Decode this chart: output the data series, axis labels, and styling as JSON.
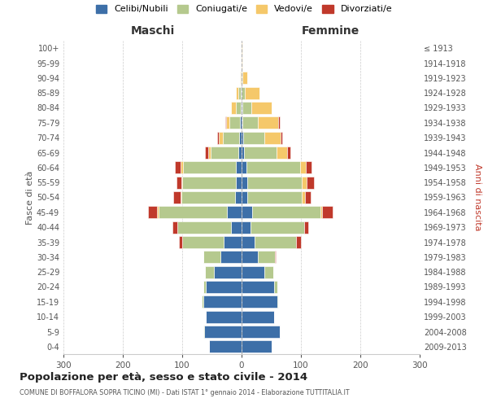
{
  "age_groups": [
    "0-4",
    "5-9",
    "10-14",
    "15-19",
    "20-24",
    "25-29",
    "30-34",
    "35-39",
    "40-44",
    "45-49",
    "50-54",
    "55-59",
    "60-64",
    "65-69",
    "70-74",
    "75-79",
    "80-84",
    "85-89",
    "90-94",
    "95-99",
    "100+"
  ],
  "birth_years": [
    "2009-2013",
    "2004-2008",
    "1999-2003",
    "1994-1998",
    "1989-1993",
    "1984-1988",
    "1979-1983",
    "1974-1978",
    "1969-1973",
    "1964-1968",
    "1959-1963",
    "1954-1958",
    "1949-1953",
    "1944-1948",
    "1939-1943",
    "1934-1938",
    "1929-1933",
    "1924-1928",
    "1919-1923",
    "1914-1918",
    "≤ 1913"
  ],
  "colors": {
    "celibi": "#3d6fa8",
    "coniugati": "#b5c98e",
    "vedovi": "#f5c86a",
    "divorziati": "#c0392b"
  },
  "maschi": {
    "celibi": [
      55,
      63,
      60,
      65,
      60,
      47,
      35,
      30,
      18,
      25,
      11,
      10,
      9,
      6,
      4,
      3,
      2,
      1,
      0,
      0,
      0
    ],
    "coniugati": [
      0,
      2,
      0,
      2,
      5,
      15,
      30,
      70,
      90,
      115,
      90,
      90,
      90,
      46,
      27,
      18,
      8,
      5,
      2,
      0,
      0
    ],
    "vedovi": [
      0,
      0,
      0,
      0,
      0,
      0,
      0,
      0,
      0,
      2,
      2,
      2,
      4,
      4,
      8,
      5,
      8,
      4,
      1,
      0,
      0
    ],
    "divorziati": [
      0,
      0,
      0,
      0,
      0,
      0,
      0,
      5,
      8,
      15,
      12,
      8,
      10,
      5,
      2,
      2,
      0,
      0,
      0,
      0,
      0
    ]
  },
  "femmine": {
    "celibi": [
      50,
      65,
      55,
      60,
      55,
      38,
      28,
      22,
      15,
      18,
      10,
      10,
      8,
      4,
      3,
      2,
      1,
      0,
      0,
      0,
      0
    ],
    "coniugati": [
      0,
      0,
      0,
      2,
      5,
      15,
      28,
      70,
      90,
      115,
      92,
      92,
      90,
      55,
      35,
      25,
      15,
      5,
      2,
      0,
      0
    ],
    "vedovi": [
      0,
      0,
      0,
      0,
      0,
      0,
      0,
      0,
      0,
      2,
      5,
      8,
      10,
      18,
      28,
      35,
      35,
      25,
      8,
      2,
      1
    ],
    "divorziati": [
      0,
      0,
      0,
      0,
      0,
      0,
      2,
      8,
      8,
      18,
      10,
      12,
      10,
      5,
      2,
      2,
      0,
      0,
      0,
      0,
      0
    ]
  },
  "title": "Popolazione per età, sesso e stato civile - 2014",
  "subtitle": "COMUNE DI BOFFALORA SOPRA TICINO (MI) - Dati ISTAT 1° gennaio 2014 - Elaborazione TUTTITALIA.IT",
  "xlabel_left": "Maschi",
  "xlabel_right": "Femmine",
  "ylabel_left": "Fasce di età",
  "ylabel_right": "Anni di nascita",
  "xlim": 300,
  "legend_labels": [
    "Celibi/Nubili",
    "Coniugati/e",
    "Vedovi/e",
    "Divorziati/e"
  ]
}
